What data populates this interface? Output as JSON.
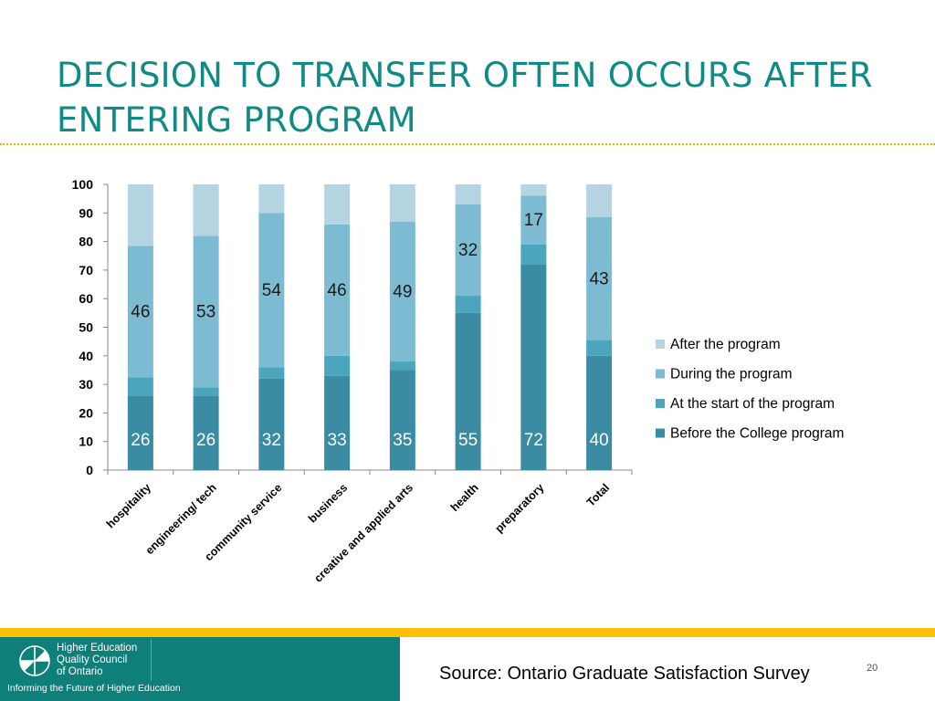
{
  "slide": {
    "title_line1": "DECISION TO TRANSFER OFTEN OCCURS AFTER",
    "title_line2": "ENTERING PROGRAM",
    "source": "Source: Ontario Graduate Satisfaction Survey",
    "page_number": "20",
    "logo": {
      "line1": "Higher Education",
      "line2": "Quality Council",
      "line3": "of Ontario",
      "tagline": "Informing the Future of Higher Education"
    }
  },
  "colors": {
    "title": "#0f8a84",
    "divider": "#e6b800",
    "footer_yellow": "#ffc000",
    "footer_teal": "#0f7f7a"
  },
  "chart_data": {
    "type": "bar",
    "stacked": true,
    "title": "",
    "xlabel": "",
    "ylabel": "",
    "ylim": [
      0,
      100
    ],
    "yticks": [
      0,
      10,
      20,
      30,
      40,
      50,
      60,
      70,
      80,
      90,
      100
    ],
    "categories": [
      "hospitality",
      "engineering/ tech",
      "community service",
      "business",
      "creative and applied arts",
      "health",
      "preparatory",
      "Total"
    ],
    "legend_position": "right",
    "series": [
      {
        "name": "Before the College program",
        "color": "#3b8ba3",
        "values": [
          26,
          26,
          32,
          33,
          35,
          55,
          72,
          40
        ],
        "labels": [
          "26",
          "26",
          "32",
          "33",
          "35",
          "55",
          "72",
          "40"
        ]
      },
      {
        "name": "At the start of the program",
        "color": "#4aa5bd",
        "values": [
          6.5,
          3,
          4,
          7,
          3,
          6,
          7,
          5.5
        ],
        "labels": []
      },
      {
        "name": "During the program",
        "color": "#7dbbd2",
        "values": [
          46,
          53,
          54,
          46,
          49,
          32,
          17,
          43
        ],
        "labels": [
          "46",
          "53",
          "54",
          "46",
          "49",
          "32",
          "17",
          "43"
        ]
      },
      {
        "name": "After the program",
        "color": "#b5d4e1",
        "values": [
          21.5,
          18,
          10,
          14,
          13,
          7,
          4,
          11.5
        ],
        "labels": []
      }
    ]
  }
}
